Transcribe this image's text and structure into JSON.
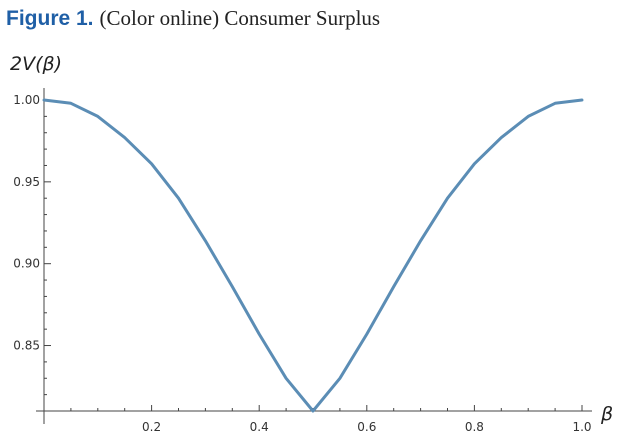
{
  "figure": {
    "label": "Figure 1.",
    "caption": "(Color online) Consumer Surplus"
  },
  "chart_data": {
    "type": "line",
    "title": "Figure 1. (Color online) Consumer Surplus",
    "xlabel": "β",
    "ylabel": "2V(β)",
    "xlim": [
      0,
      1.0
    ],
    "ylim": [
      0.81,
      1.005
    ],
    "x_ticks": [
      "0.2",
      "0.4",
      "0.6",
      "0.8",
      "1.0"
    ],
    "y_ticks": [
      "1.00",
      "0.95",
      "0.90",
      "0.85"
    ],
    "x_tick_values": [
      0.2,
      0.4,
      0.6,
      0.8,
      1.0
    ],
    "y_tick_values": [
      1.0,
      0.95,
      0.9,
      0.85
    ],
    "grid": false,
    "series": [
      {
        "color": "#5b8db5",
        "x": [
          0,
          0.05,
          0.1,
          0.15,
          0.2,
          0.25,
          0.3,
          0.35,
          0.4,
          0.45,
          0.5,
          0.55,
          0.6,
          0.65,
          0.7,
          0.75,
          0.8,
          0.85,
          0.9,
          0.95,
          1.0
        ],
        "y": [
          1.0,
          0.998,
          0.99,
          0.977,
          0.961,
          0.94,
          0.914,
          0.886,
          0.857,
          0.83,
          0.81,
          0.83,
          0.857,
          0.886,
          0.914,
          0.94,
          0.961,
          0.977,
          0.99,
          0.998,
          1.0
        ]
      }
    ]
  }
}
